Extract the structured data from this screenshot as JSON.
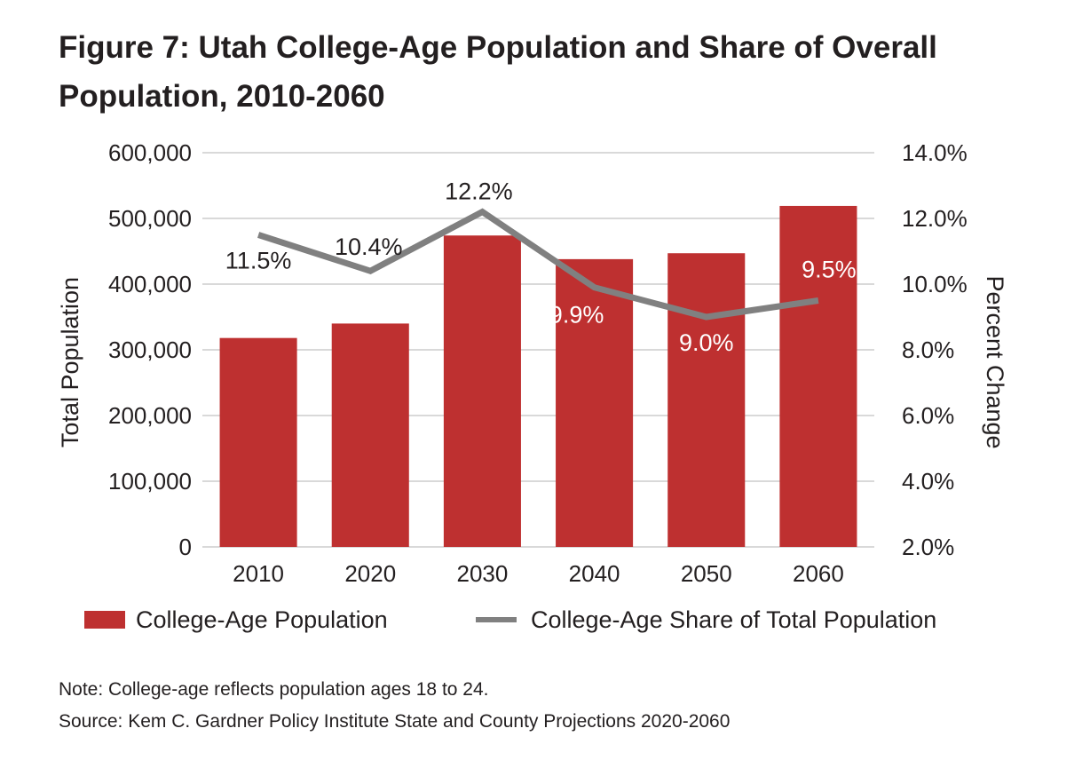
{
  "title": "Figure 7: Utah College-Age Population and Share of Overall Population, 2010-2060",
  "note": "Note: College-age reflects population ages 18 to 24.",
  "source": "Source: Kem C. Gardner Policy Institute State and County Projections 2020-2060",
  "chart_data": {
    "type": "bar",
    "categories": [
      "2010",
      "2020",
      "2030",
      "2040",
      "2050",
      "2060"
    ],
    "series": [
      {
        "name": "College-Age Population",
        "type": "bar",
        "axis": "left",
        "color": "#be3030",
        "values": [
          318000,
          340000,
          474000,
          438000,
          447000,
          519000
        ]
      },
      {
        "name": "College-Age Share of Total Population",
        "type": "line",
        "axis": "right",
        "color": "#808080",
        "values": [
          11.5,
          10.4,
          12.2,
          9.9,
          9.0,
          9.5
        ],
        "labels": [
          "11.5%",
          "10.4%",
          "12.2%",
          "9.9%",
          "9.0%",
          "9.5%"
        ]
      }
    ],
    "ylabel": "Total Population",
    "y2label": "Percent Change",
    "ylim": [
      0,
      600000
    ],
    "y2lim": [
      2.0,
      14.0
    ],
    "yticks": [
      "0",
      "100,000",
      "200,000",
      "300,000",
      "400,000",
      "500,000",
      "600,000"
    ],
    "y2ticks": [
      "2.0%",
      "4.0%",
      "6.0%",
      "8.0%",
      "10.0%",
      "12.0%",
      "14.0%"
    ],
    "grid": true,
    "legend": "bottom"
  }
}
